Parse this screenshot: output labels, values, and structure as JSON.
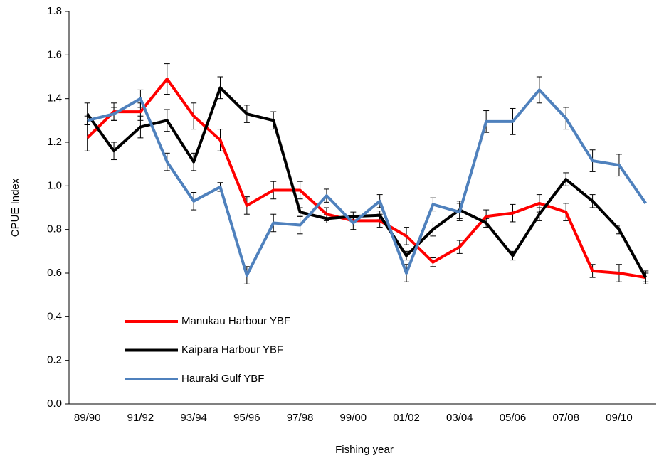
{
  "chart_data": {
    "type": "line",
    "xlabel": "Fishing year",
    "ylabel": "CPUE  Index",
    "categories": [
      "89/90",
      null,
      "91/92",
      null,
      "93/94",
      null,
      "95/96",
      null,
      "97/98",
      null,
      "99/00",
      null,
      "01/02",
      null,
      "03/04",
      null,
      "05/06",
      null,
      "07/08",
      null,
      "09/10",
      null
    ],
    "ylim": [
      0,
      1.8
    ],
    "yticks": [
      {
        "value": 0,
        "label": "0.0"
      },
      0.2,
      0.4,
      0.6,
      0.8,
      {
        "value": 1,
        "label": "1.0"
      },
      1.2,
      1.4,
      1.6,
      1.8
    ],
    "legend": "lower left",
    "series": [
      {
        "name": "Manukau Harbour YBF",
        "color": "#ff0000",
        "values": [
          1.22,
          1.34,
          1.34,
          1.49,
          1.32,
          1.21,
          0.91,
          0.98,
          0.98,
          0.87,
          0.84,
          0.84,
          0.77,
          0.65,
          0.72,
          0.86,
          0.875,
          0.92,
          0.88,
          0.61,
          0.6,
          0.58
        ],
        "errors": [
          0.06,
          0.04,
          0.04,
          0.07,
          0.06,
          0.05,
          0.04,
          0.04,
          0.04,
          0.03,
          0.02,
          0.03,
          0.04,
          0.02,
          0.03,
          0.03,
          0.04,
          0.04,
          0.04,
          0.03,
          0.04,
          0.03
        ]
      },
      {
        "name": "Kaipara Harbour YBF",
        "color": "#000000",
        "values": [
          1.33,
          1.16,
          1.27,
          1.3,
          1.11,
          1.45,
          1.33,
          1.3,
          0.88,
          0.85,
          0.86,
          0.865,
          0.68,
          0.8,
          0.89,
          0.83,
          0.68,
          0.87,
          1.03,
          0.93,
          0.8,
          0.58
        ],
        "errors": [
          0.05,
          0.04,
          0.05,
          0.05,
          0.04,
          0.05,
          0.04,
          0.04,
          0.02,
          0.02,
          0.02,
          0.02,
          0.02,
          0.03,
          0.04,
          0.02,
          0.02,
          0.03,
          0.03,
          0.03,
          0.02,
          0.02
        ]
      },
      {
        "name": "Hauraki Gulf YBF",
        "color": "#4f81bd",
        "values": [
          1.3,
          1.33,
          1.4,
          1.11,
          0.93,
          0.995,
          0.59,
          0.83,
          0.82,
          0.955,
          0.83,
          0.93,
          0.6,
          0.915,
          0.88,
          1.295,
          1.295,
          1.44,
          1.31,
          1.115,
          1.095,
          0.92
        ],
        "errors": [
          0.02,
          0.03,
          0.04,
          0.04,
          0.04,
          0.02,
          0.04,
          0.04,
          0.04,
          0.03,
          0.03,
          0.03,
          0.04,
          0.03,
          0.04,
          0.05,
          0.06,
          0.06,
          0.05,
          0.05,
          0.05,
          null
        ]
      }
    ]
  }
}
